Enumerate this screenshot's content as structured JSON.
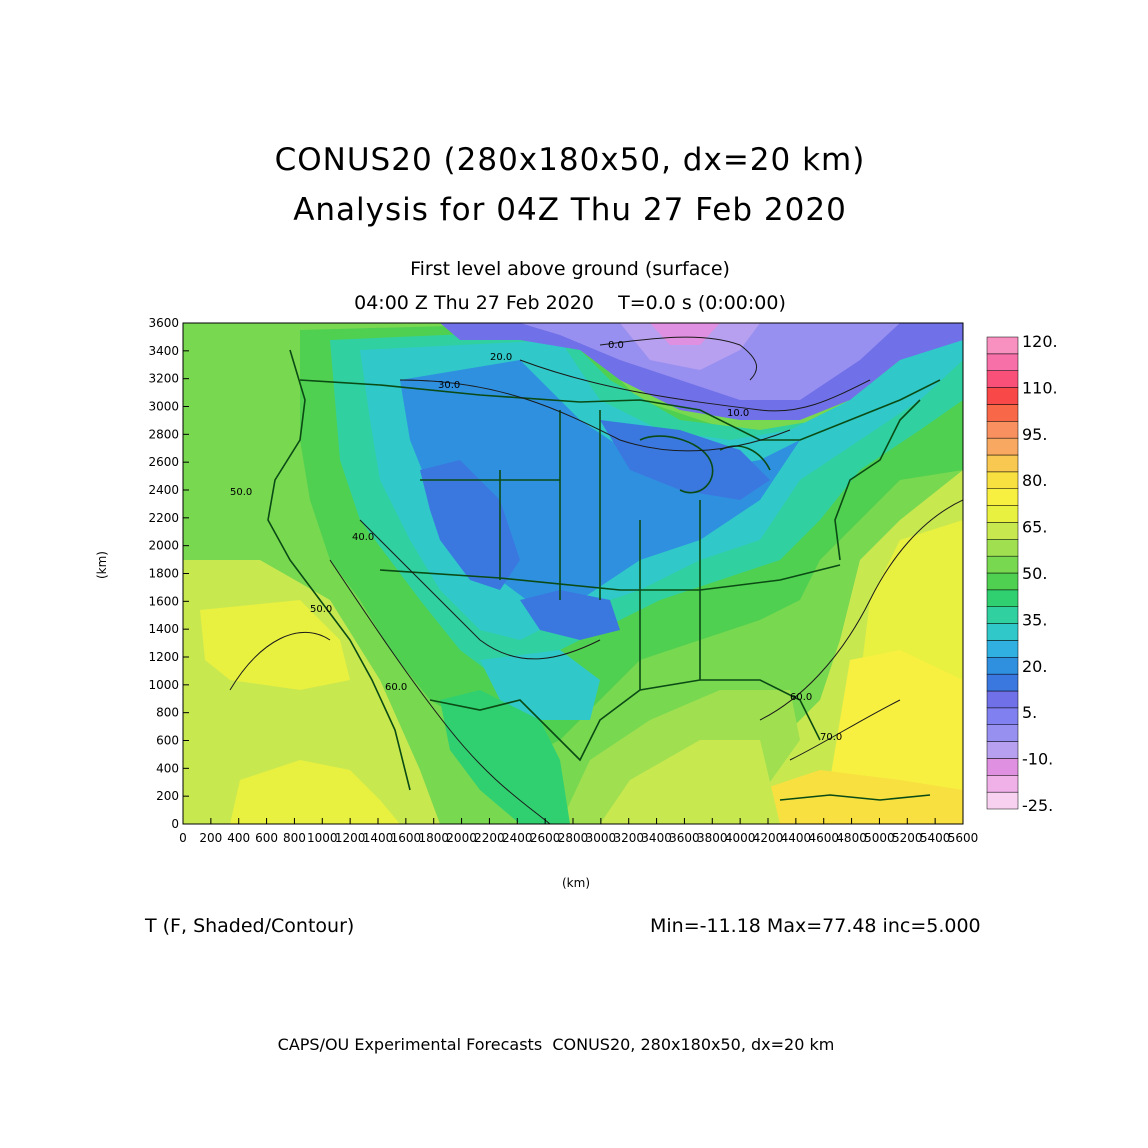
{
  "header": {
    "title_line1": "CONUS20 (280x180x50, dx=20 km)",
    "title_line2": "Analysis for 04Z Thu 27 Feb 2020",
    "subtitle_line1": "First level above ground (surface)",
    "subtitle_line2": "04:00 Z Thu 27 Feb 2020    T=0.0 s (0:00:00)"
  },
  "axes": {
    "x_label": "(km)",
    "y_label": "(km)",
    "x_ticks": [
      "0",
      "200",
      "400",
      "600",
      "800",
      "1000",
      "1200",
      "1400",
      "1600",
      "1800",
      "2000",
      "2200",
      "2400",
      "2600",
      "2800",
      "3000",
      "3200",
      "3400",
      "3600",
      "3800",
      "4000",
      "4200",
      "4400",
      "4600",
      "4800",
      "5000",
      "5200",
      "5400",
      "5600"
    ],
    "y_ticks": [
      "0",
      "200",
      "400",
      "600",
      "800",
      "1000",
      "1200",
      "1400",
      "1600",
      "1800",
      "2000",
      "2200",
      "2400",
      "2600",
      "2800",
      "3000",
      "3200",
      "3400",
      "3600"
    ],
    "x_range_km": [
      0,
      5600
    ],
    "y_range_km": [
      0,
      3600
    ]
  },
  "colorbar": {
    "labels": [
      "120.",
      "110.",
      "95.",
      "80.",
      "65.",
      "50.",
      "35.",
      "20.",
      "5.",
      "-10.",
      "-25."
    ],
    "colors": [
      "#f8d0f0",
      "#f0b0e8",
      "#e090e0",
      "#b8a0f0",
      "#9890f0",
      "#8080f0",
      "#7070e8",
      "#3a78e0",
      "#2f90e0",
      "#30b0e0",
      "#30c8c8",
      "#30d0a0",
      "#30d070",
      "#50d050",
      "#78d850",
      "#a0e050",
      "#c8e850",
      "#e8f040",
      "#f8f040",
      "#f8e040",
      "#f8c850",
      "#f8a860",
      "#f89060",
      "#f86848",
      "#f84848",
      "#f85078",
      "#f870a8",
      "#f890c0"
    ]
  },
  "contour_labels": [
    "0.0",
    "10.0",
    "20.0",
    "30.0",
    "40.0",
    "50.0",
    "60.0",
    "70.0"
  ],
  "field_label": "T (F, Shaded/Contour)",
  "stats": "Min=-11.18 Max=77.48 inc=5.000",
  "footer": "CAPS/OU Experimental Forecasts  CONUS20, 280x180x50, dx=20 km"
}
